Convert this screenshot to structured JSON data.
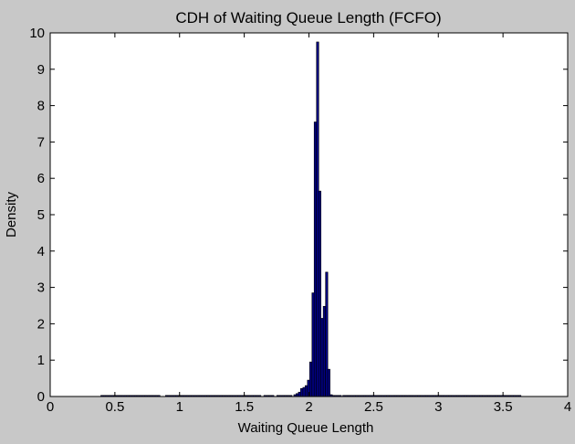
{
  "chart_data": {
    "type": "bar",
    "title": "CDH of Waiting Queue Length (FCFO)",
    "xlabel": "Waiting Queue Length",
    "ylabel": "Density",
    "xlim": [
      0,
      4
    ],
    "ylim": [
      0,
      10
    ],
    "xticks": [
      0,
      0.5,
      1,
      1.5,
      2,
      2.5,
      3,
      3.5,
      4
    ],
    "xtick_labels": [
      "0",
      "0.5",
      "1",
      "1.5",
      "2",
      "2.5",
      "3",
      "3.5",
      "4"
    ],
    "yticks": [
      0,
      1,
      2,
      3,
      4,
      5,
      6,
      7,
      8,
      9,
      10
    ],
    "ytick_labels": [
      "0",
      "1",
      "2",
      "3",
      "4",
      "5",
      "6",
      "7",
      "8",
      "9",
      "10"
    ],
    "grid": false,
    "bar_color": "#000080",
    "bar_edge_color": "#000000",
    "bins": {
      "bin_width": 0.0175,
      "x": [
        0.4,
        0.42,
        0.44,
        0.46,
        0.48,
        0.5,
        0.52,
        0.54,
        0.56,
        0.58,
        0.6,
        0.62,
        0.64,
        0.66,
        0.68,
        0.7,
        0.72,
        0.74,
        0.76,
        0.78,
        0.8,
        0.82,
        0.84,
        0.9,
        0.92,
        0.94,
        0.96,
        0.98,
        1.0,
        1.02,
        1.04,
        1.06,
        1.08,
        1.1,
        1.12,
        1.14,
        1.16,
        1.18,
        1.2,
        1.22,
        1.24,
        1.26,
        1.28,
        1.3,
        1.32,
        1.34,
        1.36,
        1.38,
        1.4,
        1.42,
        1.44,
        1.46,
        1.48,
        1.5,
        1.52,
        1.54,
        1.56,
        1.58,
        1.6,
        1.62,
        1.66,
        1.68,
        1.7,
        1.72,
        1.76,
        1.78,
        1.8,
        1.82,
        1.84,
        1.86,
        1.892,
        1.909,
        1.927,
        1.944,
        1.962,
        1.979,
        1.997,
        2.014,
        2.032,
        2.049,
        2.067,
        2.084,
        2.102,
        2.119,
        2.137,
        2.154,
        2.172,
        2.189,
        2.207,
        2.224,
        2.242,
        2.27,
        2.29,
        2.31,
        2.33,
        2.35,
        2.37,
        2.39,
        2.41,
        2.43,
        2.45,
        2.47,
        2.49,
        2.51,
        2.53,
        2.55,
        2.57,
        2.59,
        2.61,
        2.63,
        2.65,
        2.67,
        2.69,
        2.71,
        2.73,
        2.75,
        2.77,
        2.79,
        2.81,
        2.83,
        2.85,
        2.87,
        2.89,
        2.91,
        2.93,
        2.95,
        2.97,
        2.99,
        3.01,
        3.03,
        3.05,
        3.07,
        3.09,
        3.11,
        3.13,
        3.15,
        3.17,
        3.19,
        3.21,
        3.23,
        3.25,
        3.27,
        3.29,
        3.31,
        3.33,
        3.35,
        3.37,
        3.39,
        3.41,
        3.43,
        3.45,
        3.47,
        3.49,
        3.51,
        3.53,
        3.55,
        3.57,
        3.59,
        3.61,
        3.63
      ],
      "density": [
        0.03,
        0.03,
        0.03,
        0.03,
        0.03,
        0.03,
        0.03,
        0.03,
        0.03,
        0.03,
        0.03,
        0.03,
        0.03,
        0.03,
        0.03,
        0.03,
        0.03,
        0.03,
        0.03,
        0.03,
        0.03,
        0.03,
        0.03,
        0.03,
        0.03,
        0.03,
        0.03,
        0.03,
        0.03,
        0.03,
        0.03,
        0.03,
        0.03,
        0.03,
        0.03,
        0.03,
        0.03,
        0.03,
        0.03,
        0.03,
        0.03,
        0.03,
        0.03,
        0.03,
        0.03,
        0.03,
        0.03,
        0.03,
        0.03,
        0.03,
        0.03,
        0.03,
        0.03,
        0.03,
        0.03,
        0.03,
        0.03,
        0.03,
        0.03,
        0.03,
        0.03,
        0.03,
        0.03,
        0.03,
        0.03,
        0.03,
        0.03,
        0.03,
        0.03,
        0.03,
        0.05,
        0.08,
        0.12,
        0.22,
        0.25,
        0.3,
        0.45,
        0.95,
        2.85,
        7.55,
        9.75,
        5.65,
        2.15,
        2.48,
        3.42,
        0.75,
        0.05,
        0.03,
        0.03,
        0.03,
        0.03,
        0.03,
        0.03,
        0.03,
        0.03,
        0.03,
        0.03,
        0.03,
        0.03,
        0.03,
        0.03,
        0.03,
        0.03,
        0.03,
        0.03,
        0.03,
        0.03,
        0.03,
        0.03,
        0.03,
        0.03,
        0.03,
        0.03,
        0.03,
        0.03,
        0.03,
        0.03,
        0.03,
        0.03,
        0.03,
        0.03,
        0.03,
        0.03,
        0.03,
        0.03,
        0.03,
        0.03,
        0.03,
        0.03,
        0.03,
        0.03,
        0.03,
        0.03,
        0.03,
        0.03,
        0.03,
        0.03,
        0.03,
        0.03,
        0.03,
        0.03,
        0.03,
        0.03,
        0.03,
        0.03,
        0.03,
        0.03,
        0.03,
        0.03,
        0.03,
        0.03,
        0.03,
        0.03,
        0.03,
        0.03,
        0.03,
        0.03,
        0.03,
        0.03,
        0.03,
        0.03
      ]
    }
  }
}
